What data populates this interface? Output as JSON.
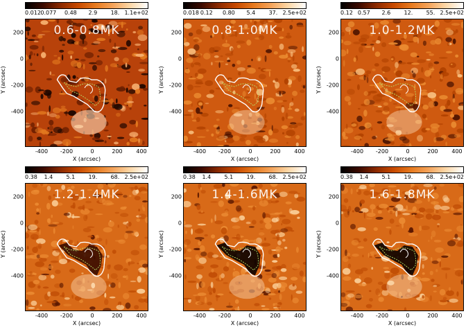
{
  "figure": {
    "panels": [
      {
        "id": "p1",
        "temperature_label": "0.6-0.8MK",
        "colorbar_ticks": [
          "0.012",
          "0.077",
          "0.48",
          "2.9",
          "18.",
          "1.1e+02"
        ],
        "texture": "dark"
      },
      {
        "id": "p2",
        "temperature_label": "0.8-1.0MK",
        "colorbar_ticks": [
          "0.018",
          "0.12",
          "0.80",
          "5.4",
          "37.",
          "2.5e+02"
        ],
        "texture": "mid"
      },
      {
        "id": "p3",
        "temperature_label": "1.0-1.2MK",
        "colorbar_ticks": [
          "0.12",
          "0.57",
          "2.6",
          "12.",
          "55.",
          "2.5e+02"
        ],
        "texture": "mid"
      },
      {
        "id": "p4",
        "temperature_label": "1.2-1.4MK",
        "colorbar_ticks": [
          "0.38",
          "1.4",
          "5.1",
          "19.",
          "68.",
          "2.5e+02"
        ],
        "texture": "bright"
      },
      {
        "id": "p5",
        "temperature_label": "1.4-1.6MK",
        "colorbar_ticks": [
          "0.38",
          "1.4",
          "5.1",
          "19.",
          "68.",
          "2.5e+02"
        ],
        "texture": "bright"
      },
      {
        "id": "p6",
        "temperature_label": "1.6-1.8MK",
        "colorbar_ticks": [
          "0.38",
          "1.4",
          "5.1",
          "19.",
          "68.",
          "2.5e+02"
        ],
        "texture": "bright"
      }
    ],
    "x_axis": {
      "label": "X (arcsec)",
      "ticks": [
        "-400",
        "-200",
        "0",
        "200",
        "400"
      ]
    },
    "y_axis": {
      "label": "Y (arcsec)",
      "ticks": [
        "200",
        "0",
        "-200",
        "-400"
      ]
    },
    "colors": {
      "colormap": [
        "#000000",
        "#3a0a00",
        "#8b2a00",
        "#c84a00",
        "#e77a1e",
        "#f4a35a",
        "#fcd8a8",
        "#ffffff"
      ],
      "contour_outer": "#ffffff",
      "contour_inner": "#b6e36a"
    }
  }
}
